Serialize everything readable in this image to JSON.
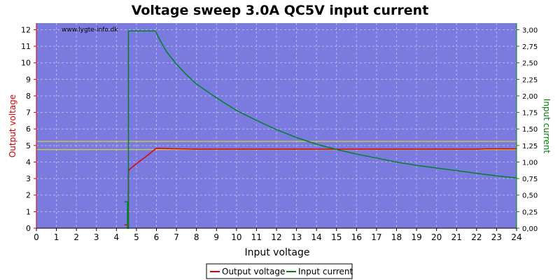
{
  "chart_data": {
    "type": "line",
    "title": "Voltage sweep 3.0A QC5V input current",
    "watermark": "www.lygte-info.dk",
    "xlabel": "Input voltage",
    "ylabel_left": "Output voltage",
    "ylabel_right": "Input current",
    "xlim": [
      0,
      24
    ],
    "ylim_left": [
      0,
      12.4
    ],
    "ylim_right": [
      0,
      3.1
    ],
    "x_ticks": [
      "0",
      "1",
      "2",
      "3",
      "4",
      "5",
      "6",
      "7",
      "8",
      "9",
      "10",
      "11",
      "12",
      "13",
      "14",
      "15",
      "16",
      "17",
      "18",
      "19",
      "20",
      "21",
      "22",
      "23",
      "24"
    ],
    "y_left_ticks": [
      "0",
      "1",
      "2",
      "3",
      "4",
      "5",
      "6",
      "7",
      "8",
      "9",
      "10",
      "11",
      "12"
    ],
    "y_right_ticks": [
      "0,00",
      "0,25",
      "0,50",
      "0,75",
      "1,00",
      "1,25",
      "1,50",
      "1,75",
      "2,00",
      "2,25",
      "2,50",
      "2,75",
      "3,00"
    ],
    "grid": true,
    "legend_position": "bottom-center",
    "limit_lines_left": [
      4.75,
      5.25
    ],
    "colors": {
      "plot_bg": "#7b7bdf",
      "grid": "#b7b7ee",
      "output_voltage": "#e00000",
      "input_current": "#007f2a",
      "limit_line": "#e8e800",
      "left_axis": "#d00000",
      "right_axis": "#008000"
    },
    "series": [
      {
        "name": "Output voltage",
        "axis": "left",
        "x": [
          4.4,
          4.6,
          4.6,
          4.65,
          5.0,
          5.5,
          5.9,
          6.0,
          7.0,
          8.0,
          10.0,
          12.0,
          14.0,
          16.0,
          18.0,
          20.0,
          22.0,
          22.5,
          24.0
        ],
        "y": [
          0.2,
          0.2,
          3.45,
          3.55,
          3.9,
          4.35,
          4.75,
          4.83,
          4.8,
          4.78,
          4.78,
          4.78,
          4.78,
          4.78,
          4.78,
          4.78,
          4.78,
          4.8,
          4.8
        ]
      },
      {
        "name": "Input current",
        "axis": "right",
        "x": [
          4.4,
          4.55,
          4.55,
          4.6,
          4.6,
          5.95,
          6.2,
          6.5,
          7.0,
          7.5,
          8.0,
          9.0,
          10.0,
          11.0,
          12.0,
          13.0,
          14.0,
          15.0,
          16.0,
          17.0,
          18.0,
          19.0,
          20.0,
          21.0,
          22.0,
          23.0,
          24.0
        ],
        "y": [
          0.4,
          0.4,
          0.0,
          0.0,
          2.98,
          2.98,
          2.83,
          2.67,
          2.48,
          2.32,
          2.18,
          1.97,
          1.78,
          1.63,
          1.49,
          1.37,
          1.27,
          1.19,
          1.12,
          1.06,
          1.0,
          0.95,
          0.91,
          0.87,
          0.83,
          0.79,
          0.76
        ]
      }
    ]
  }
}
